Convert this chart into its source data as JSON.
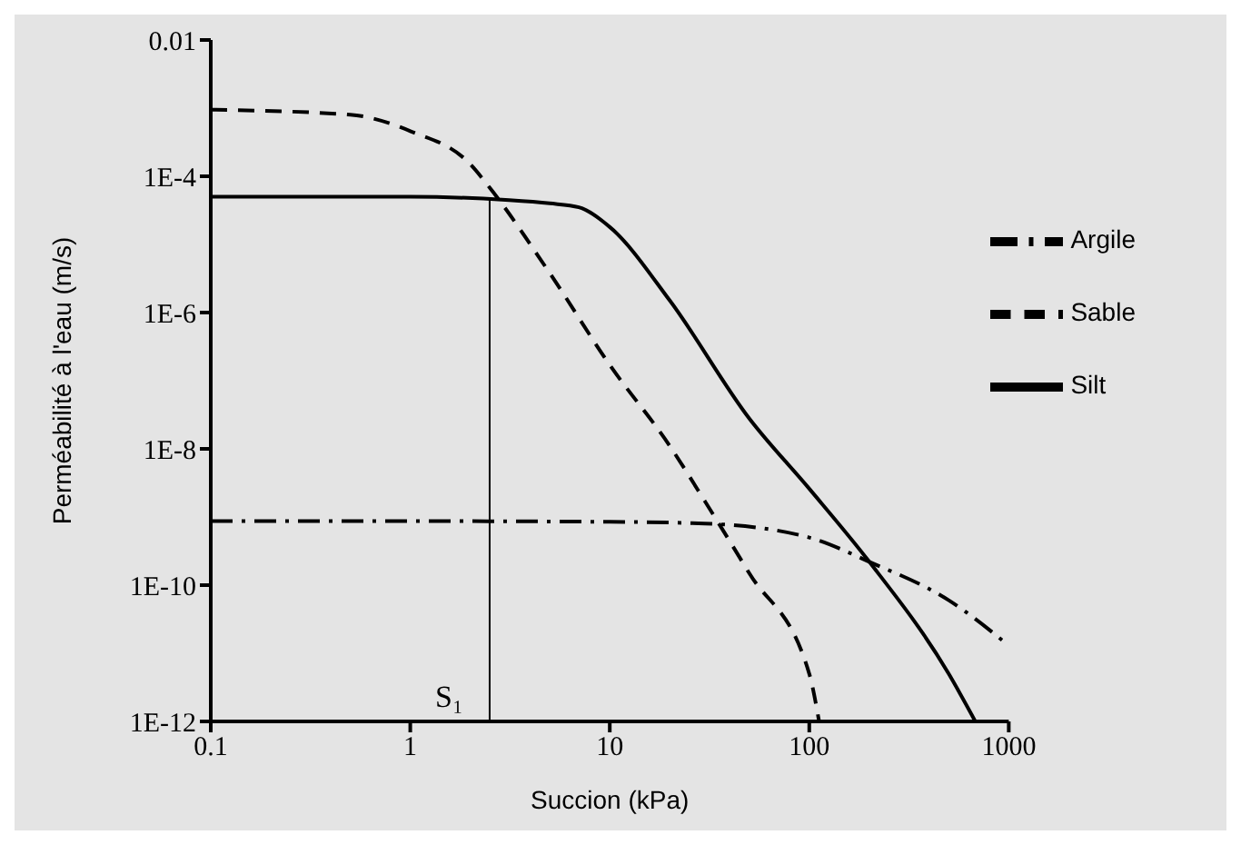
{
  "chart_data": {
    "type": "line",
    "xlabel": "Succion (kPa)",
    "ylabel": "Perméabilité à l'eau (m/s)",
    "log": "xy",
    "xlim": [
      0.1,
      1000
    ],
    "xticks": [
      0.1,
      1,
      10,
      100,
      1000
    ],
    "ylim": [
      1e-12,
      0.01
    ],
    "yticks": [
      {
        "value": 0.01,
        "label": "0.01"
      },
      {
        "value": 0.0001,
        "label": "1E-4"
      },
      {
        "value": 1e-06,
        "label": "1E-6"
      },
      {
        "value": 1e-08,
        "label": "1E-8"
      },
      {
        "value": 1e-10,
        "label": "1E-10"
      },
      {
        "value": 1e-12,
        "label": "1E-12"
      }
    ],
    "legend": "right",
    "marker": "none",
    "series": [
      {
        "name": "Silt",
        "color": "#000000",
        "line_style": "solid",
        "x": [
          0.1,
          1,
          3,
          5,
          7,
          10,
          20,
          50,
          100,
          200,
          500,
          680
        ],
        "values": [
          5e-05,
          5e-05,
          4.5e-05,
          4e-05,
          3.5e-05,
          1.8e-05,
          1.5e-06,
          2.8e-08,
          2.6e-09,
          2.2e-10,
          5e-12,
          1e-12
        ]
      },
      {
        "name": "Sable",
        "color": "#000000",
        "line_style": "dashed",
        "x": [
          0.1,
          0.5,
          1,
          2,
          2.5,
          5,
          10,
          20,
          30,
          50,
          100,
          112
        ],
        "values": [
          0.00095,
          0.0008,
          0.00046,
          0.00015,
          6.8e-05,
          3.8e-06,
          1.7e-07,
          1.1e-08,
          1.7e-09,
          1.5e-10,
          5e-12,
          1e-12
        ]
      },
      {
        "name": "Argile",
        "color": "#000000",
        "line_style": "dashdot",
        "x": [
          0.1,
          1,
          10,
          30,
          100,
          200,
          500,
          1000
        ],
        "values": [
          8.7e-10,
          8.7e-10,
          8.5e-10,
          8e-10,
          5e-10,
          2.2e-10,
          6e-11,
          1.3e-11
        ]
      }
    ],
    "ref_lines": [
      {
        "axis": "x",
        "value": 2.5,
        "label": "S₁",
        "color": "#000000"
      }
    ]
  }
}
